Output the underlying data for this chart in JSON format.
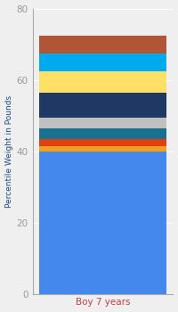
{
  "categories": [
    "Boy 7 years"
  ],
  "segments": [
    {
      "value": 40,
      "color": "#4488EE"
    },
    {
      "value": 1.5,
      "color": "#F0A020"
    },
    {
      "value": 2,
      "color": "#E04010"
    },
    {
      "value": 3,
      "color": "#1A7090"
    },
    {
      "value": 3,
      "color": "#C0C0C0"
    },
    {
      "value": 7,
      "color": "#1F3864"
    },
    {
      "value": 6,
      "color": "#FFE066"
    },
    {
      "value": 5,
      "color": "#00AAEE"
    },
    {
      "value": 5,
      "color": "#B05535"
    }
  ],
  "ylabel": "Percentile Weight in Pounds",
  "xlabel": "Boy 7 years",
  "ylim": [
    0,
    80
  ],
  "yticks": [
    0,
    20,
    40,
    60,
    80
  ],
  "background_color": "#EFEFEF",
  "xlabel_color": "#C04040",
  "ylabel_color": "#1F497D",
  "tick_color": "#999999",
  "grid_color": "#FFFFFF",
  "figsize": [
    2.0,
    3.5
  ],
  "dpi": 100,
  "bar_width": 0.45
}
